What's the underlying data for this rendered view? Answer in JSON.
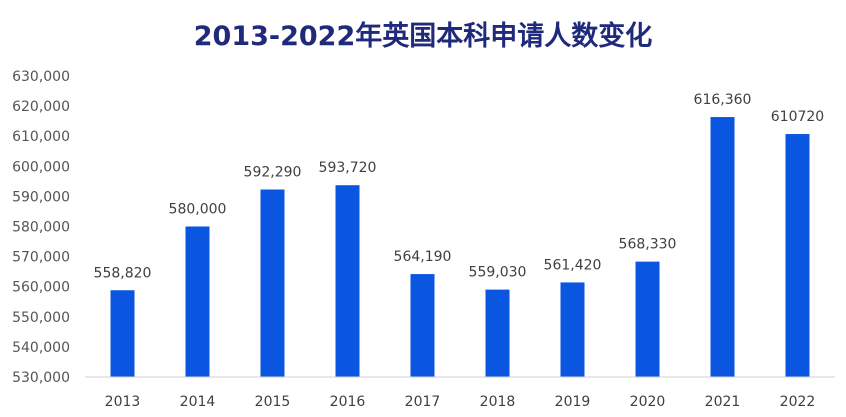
{
  "chart_data": {
    "type": "bar",
    "title": "2013-2022年英国本科申请人数变化",
    "xlabel": "",
    "ylabel": "",
    "categories": [
      "2013",
      "2014",
      "2015",
      "2016",
      "2017",
      "2018",
      "2019",
      "2020",
      "2021",
      "2022"
    ],
    "values": [
      558820,
      580000,
      592290,
      593720,
      564190,
      559030,
      561420,
      568330,
      616360,
      610720
    ],
    "data_labels": [
      "558,820",
      "580,000",
      "592,290",
      "593,720",
      "564,190",
      "559,030",
      "561,420",
      "568,330",
      "616,360",
      "610720"
    ],
    "ylim": [
      530000,
      630000
    ],
    "yticks": [
      530000,
      540000,
      550000,
      560000,
      570000,
      580000,
      590000,
      600000,
      610000,
      620000,
      630000
    ],
    "ytick_labels": [
      "530,000",
      "540,000",
      "550,000",
      "560,000",
      "570,000",
      "580,000",
      "590,000",
      "600,000",
      "610,000",
      "620,000",
      "630,000"
    ],
    "grid": false,
    "legend": "none",
    "colors": {
      "bar": "#0a56e0",
      "title": "#1f2a7a"
    }
  }
}
